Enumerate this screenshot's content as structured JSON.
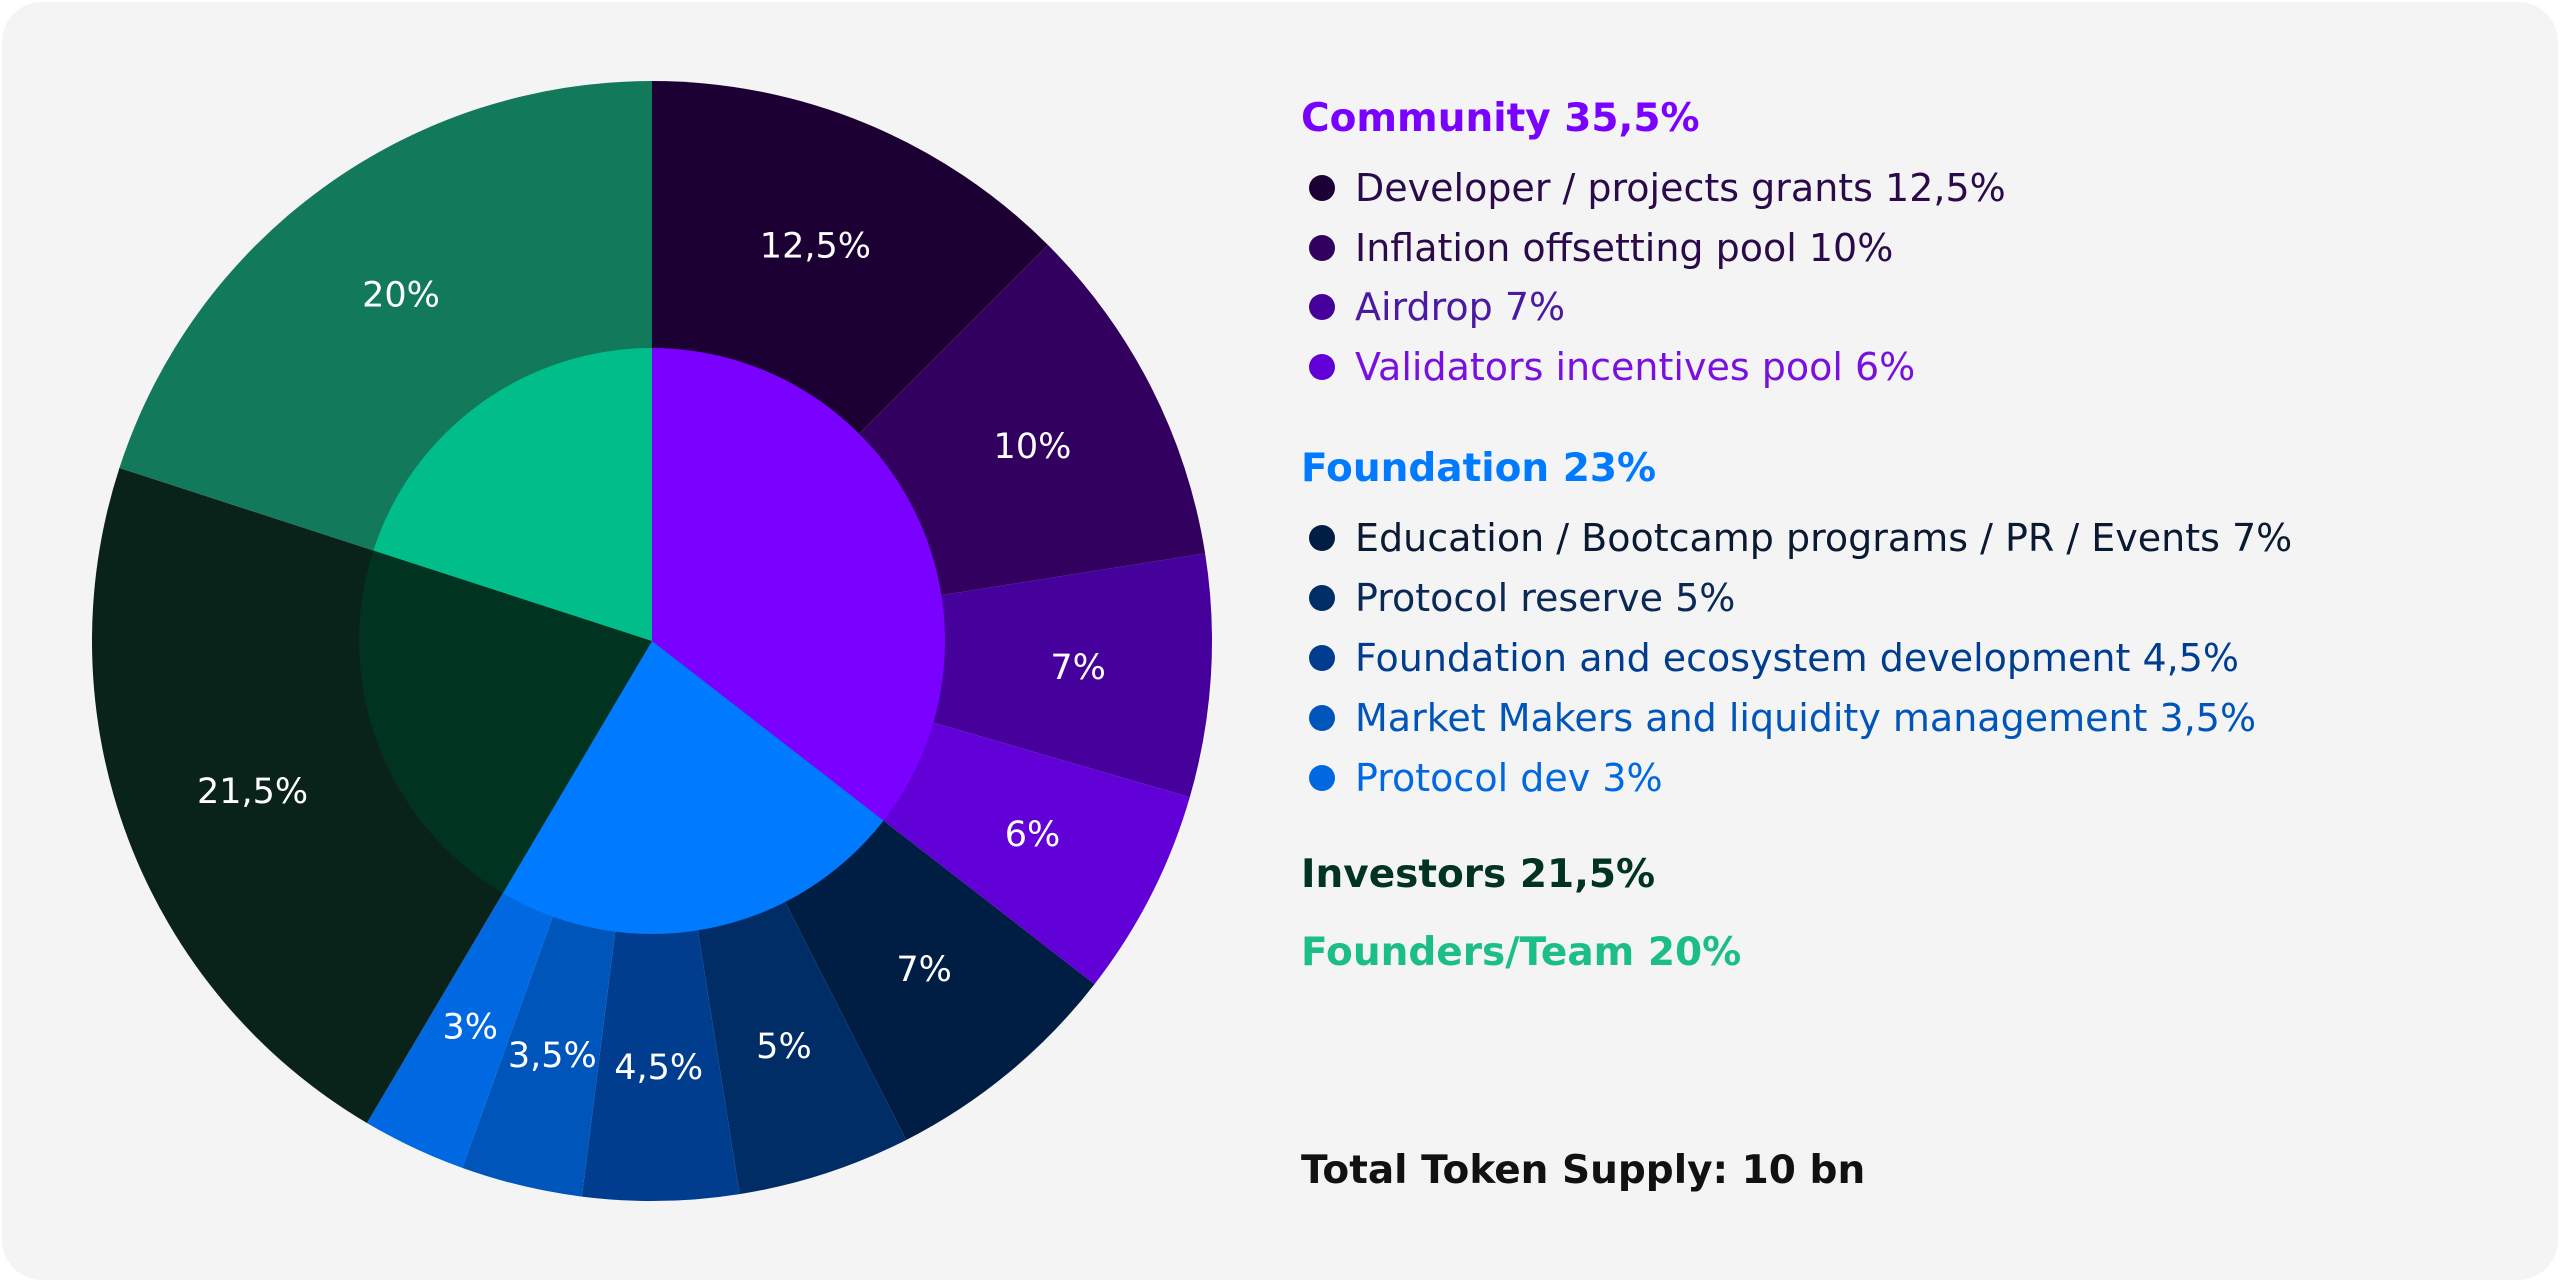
{
  "chart_data": {
    "type": "pie",
    "subtype": "nested-donut",
    "start_angle": "top",
    "direction": "clockwise",
    "inner": [
      {
        "name": "Community",
        "value": 35.5,
        "label": "Community 35,5%",
        "color": "#7a00ff"
      },
      {
        "name": "Foundation",
        "value": 23,
        "label": "Foundation 23%",
        "color": "#007aff"
      },
      {
        "name": "Investors",
        "value": 21.5,
        "label": "Investors 21,5%",
        "color": "#003320"
      },
      {
        "name": "Founders/Team",
        "value": 20,
        "label": "Founders/Team 20%",
        "color": "#00bd8a"
      }
    ],
    "outer": [
      {
        "group": 0,
        "name": "Developer / projects grants",
        "value": 12.5,
        "data_label": "12,5%",
        "legend": "Developer / projects grants 12,5%",
        "color": "#1c0033"
      },
      {
        "group": 0,
        "name": "Inflation offsetting pool",
        "value": 10,
        "data_label": "10%",
        "legend": "Inflation offsetting pool 10%",
        "color": "#32005e"
      },
      {
        "group": 0,
        "name": "Airdrop",
        "value": 7,
        "data_label": "7%",
        "legend": "Airdrop 7%",
        "color": "#46009c"
      },
      {
        "group": 0,
        "name": "Validators incentives pool",
        "value": 6,
        "data_label": "6%",
        "legend": "Validators incentives pool 6%",
        "color": "#6200d8"
      },
      {
        "group": 1,
        "name": "Education / Bootcamp programs / PR / Events",
        "value": 7,
        "data_label": "7%",
        "legend": "Education / Bootcamp programs / PR / Events 7%",
        "color": "#001e44"
      },
      {
        "group": 1,
        "name": "Protocol reserve",
        "value": 5,
        "data_label": "5%",
        "legend": "Protocol reserve 5%",
        "color": "#002d66"
      },
      {
        "group": 1,
        "name": "Foundation and ecosystem development",
        "value": 4.5,
        "data_label": "4,5%",
        "legend": "Foundation and ecosystem development 4,5%",
        "color": "#003d8f"
      },
      {
        "group": 1,
        "name": "Market Makers and liquidity management",
        "value": 3.5,
        "data_label": "3,5%",
        "legend": "Market Makers and liquidity management 3,5%",
        "color": "#0055bb"
      },
      {
        "group": 1,
        "name": "Protocol dev",
        "value": 3,
        "data_label": "3%",
        "legend": "Protocol dev 3%",
        "color": "#0068e0"
      },
      {
        "group": 2,
        "name": "Investors",
        "value": 21.5,
        "data_label": "21,5%",
        "color": "#0a231a"
      },
      {
        "group": 3,
        "name": "Founders/Team",
        "value": 20,
        "data_label": "20%",
        "color": "#13795b"
      }
    ],
    "legend_placement": "right"
  },
  "footer": {
    "total": "Total Token Supply: 10 bn"
  }
}
